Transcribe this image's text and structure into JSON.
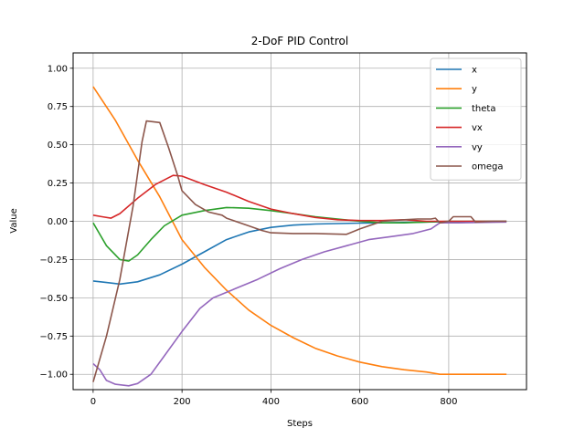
{
  "chart_data": {
    "type": "line",
    "title": "2-DoF PID Control",
    "xlabel": "Steps",
    "ylabel": "Value",
    "xlim": [
      -45,
      975
    ],
    "ylim": [
      -1.1,
      1.1
    ],
    "xticks": [
      0,
      200,
      400,
      600,
      800
    ],
    "xtick_labels": [
      "0",
      "200",
      "400",
      "600",
      "800"
    ],
    "yticks": [
      -1.0,
      -0.75,
      -0.5,
      -0.25,
      0.0,
      0.25,
      0.5,
      0.75,
      1.0
    ],
    "ytick_labels": [
      "−1.00",
      "−0.75",
      "−0.50",
      "−0.25",
      "0.00",
      "0.25",
      "0.50",
      "0.75",
      "1.00"
    ],
    "grid": true,
    "legend_position": "top-right",
    "series": [
      {
        "name": "x",
        "color": "#1f77b4",
        "points": [
          [
            0,
            -0.39
          ],
          [
            30,
            -0.4
          ],
          [
            60,
            -0.41
          ],
          [
            100,
            -0.395
          ],
          [
            150,
            -0.35
          ],
          [
            200,
            -0.28
          ],
          [
            250,
            -0.2
          ],
          [
            300,
            -0.12
          ],
          [
            350,
            -0.07
          ],
          [
            400,
            -0.04
          ],
          [
            450,
            -0.025
          ],
          [
            500,
            -0.018
          ],
          [
            550,
            -0.015
          ],
          [
            600,
            -0.012
          ],
          [
            650,
            -0.01
          ],
          [
            700,
            -0.008
          ],
          [
            750,
            -0.005
          ],
          [
            800,
            -0.003
          ],
          [
            850,
            -0.001
          ],
          [
            930,
            0.0
          ]
        ]
      },
      {
        "name": "y",
        "color": "#ff7f0e",
        "points": [
          [
            0,
            0.88
          ],
          [
            50,
            0.66
          ],
          [
            100,
            0.4
          ],
          [
            150,
            0.16
          ],
          [
            200,
            -0.12
          ],
          [
            250,
            -0.3
          ],
          [
            300,
            -0.45
          ],
          [
            350,
            -0.58
          ],
          [
            400,
            -0.68
          ],
          [
            450,
            -0.76
          ],
          [
            500,
            -0.83
          ],
          [
            550,
            -0.88
          ],
          [
            600,
            -0.92
          ],
          [
            650,
            -0.95
          ],
          [
            700,
            -0.97
          ],
          [
            750,
            -0.985
          ],
          [
            780,
            -1.0
          ],
          [
            930,
            -1.0
          ]
        ]
      },
      {
        "name": "theta",
        "color": "#2ca02c",
        "points": [
          [
            0,
            -0.01
          ],
          [
            30,
            -0.16
          ],
          [
            60,
            -0.25
          ],
          [
            80,
            -0.26
          ],
          [
            100,
            -0.22
          ],
          [
            130,
            -0.12
          ],
          [
            160,
            -0.03
          ],
          [
            200,
            0.04
          ],
          [
            250,
            0.07
          ],
          [
            300,
            0.09
          ],
          [
            350,
            0.085
          ],
          [
            400,
            0.07
          ],
          [
            450,
            0.05
          ],
          [
            500,
            0.03
          ],
          [
            550,
            0.015
          ],
          [
            600,
            0.0
          ],
          [
            650,
            -0.01
          ],
          [
            700,
            -0.01
          ],
          [
            750,
            -0.005
          ],
          [
            800,
            0.0
          ],
          [
            930,
            0.0
          ]
        ]
      },
      {
        "name": "vx",
        "color": "#d62728",
        "points": [
          [
            0,
            0.04
          ],
          [
            20,
            0.03
          ],
          [
            40,
            0.02
          ],
          [
            60,
            0.05
          ],
          [
            100,
            0.15
          ],
          [
            140,
            0.24
          ],
          [
            180,
            0.3
          ],
          [
            200,
            0.295
          ],
          [
            250,
            0.24
          ],
          [
            300,
            0.19
          ],
          [
            350,
            0.13
          ],
          [
            400,
            0.08
          ],
          [
            450,
            0.05
          ],
          [
            500,
            0.025
          ],
          [
            550,
            0.01
          ],
          [
            600,
            0.005
          ],
          [
            650,
            0.005
          ],
          [
            700,
            0.01
          ],
          [
            750,
            0.0
          ],
          [
            800,
            0.0
          ],
          [
            850,
            0.0
          ],
          [
            930,
            0.0
          ]
        ]
      },
      {
        "name": "vy",
        "color": "#9467bd",
        "points": [
          [
            0,
            -0.93
          ],
          [
            15,
            -0.97
          ],
          [
            30,
            -1.04
          ],
          [
            50,
            -1.065
          ],
          [
            80,
            -1.075
          ],
          [
            100,
            -1.06
          ],
          [
            130,
            -1.0
          ],
          [
            160,
            -0.88
          ],
          [
            200,
            -0.72
          ],
          [
            240,
            -0.57
          ],
          [
            270,
            -0.5
          ],
          [
            320,
            -0.44
          ],
          [
            370,
            -0.38
          ],
          [
            420,
            -0.31
          ],
          [
            470,
            -0.25
          ],
          [
            520,
            -0.2
          ],
          [
            570,
            -0.16
          ],
          [
            620,
            -0.12
          ],
          [
            670,
            -0.1
          ],
          [
            720,
            -0.08
          ],
          [
            760,
            -0.05
          ],
          [
            780,
            -0.01
          ],
          [
            820,
            -0.01
          ],
          [
            930,
            -0.005
          ]
        ]
      },
      {
        "name": "omega",
        "color": "#8c564b",
        "points": [
          [
            0,
            -1.05
          ],
          [
            30,
            -0.75
          ],
          [
            60,
            -0.38
          ],
          [
            90,
            0.1
          ],
          [
            110,
            0.52
          ],
          [
            120,
            0.655
          ],
          [
            150,
            0.645
          ],
          [
            170,
            0.48
          ],
          [
            190,
            0.3
          ],
          [
            200,
            0.2
          ],
          [
            230,
            0.11
          ],
          [
            260,
            0.06
          ],
          [
            290,
            0.04
          ],
          [
            300,
            0.02
          ],
          [
            350,
            -0.03
          ],
          [
            380,
            -0.06
          ],
          [
            400,
            -0.075
          ],
          [
            450,
            -0.08
          ],
          [
            500,
            -0.08
          ],
          [
            570,
            -0.085
          ],
          [
            600,
            -0.05
          ],
          [
            650,
            0.0
          ],
          [
            700,
            0.01
          ],
          [
            730,
            0.015
          ],
          [
            760,
            0.015
          ],
          [
            770,
            0.02
          ],
          [
            780,
            -0.01
          ],
          [
            800,
            0.0
          ],
          [
            810,
            0.03
          ],
          [
            850,
            0.03
          ],
          [
            860,
            -0.005
          ],
          [
            900,
            0.0
          ],
          [
            930,
            0.0
          ]
        ]
      }
    ]
  }
}
